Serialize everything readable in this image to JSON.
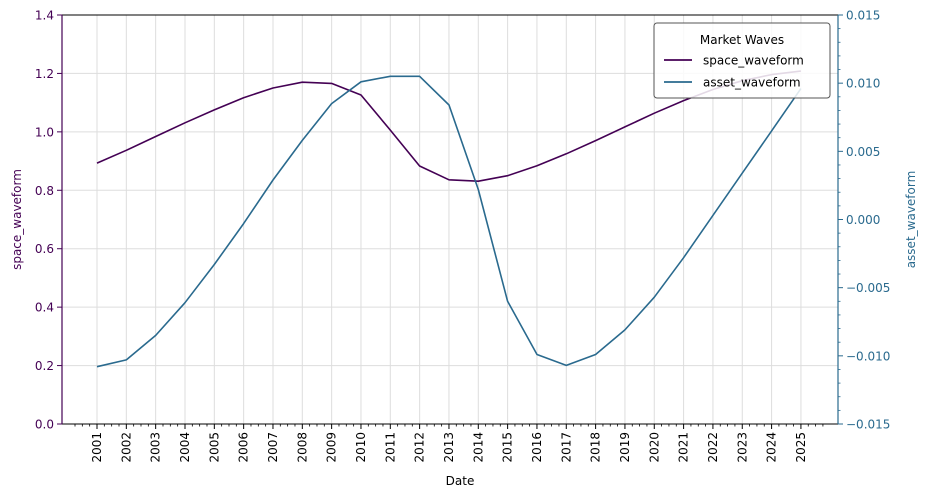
{
  "chart_data": {
    "type": "line",
    "xlabel": "Date",
    "ylabel_left": "space_waveform",
    "ylabel_right": "asset_waveform",
    "ylim_left": [
      0.0,
      1.4
    ],
    "ylim_right": [
      -0.015,
      0.015
    ],
    "x": [
      "2001",
      "2002",
      "2003",
      "2004",
      "2005",
      "2006",
      "2007",
      "2008",
      "2009",
      "2010",
      "2011",
      "2012",
      "2013",
      "2014",
      "2015",
      "2016",
      "2017",
      "2018",
      "2019",
      "2020",
      "2021",
      "2022",
      "2023",
      "2024",
      "2025"
    ],
    "left_ticks": [
      "0.0",
      "0.2",
      "0.4",
      "0.6",
      "0.8",
      "1.0",
      "1.2",
      "1.4"
    ],
    "right_ticks": [
      "−0.015",
      "−0.010",
      "−0.005",
      "0.000",
      "0.005",
      "0.010",
      "0.015"
    ],
    "grid": true,
    "legend": {
      "title": "Market Waves",
      "placement": "top-right"
    },
    "series": [
      {
        "name": "space_waveform",
        "axis": "left",
        "color": "#440154",
        "values": [
          0.893,
          0.937,
          0.984,
          1.031,
          1.075,
          1.117,
          1.15,
          1.17,
          1.166,
          1.126,
          1.006,
          0.883,
          0.836,
          0.831,
          0.85,
          0.884,
          0.925,
          0.97,
          1.017,
          1.064,
          1.107,
          1.145,
          1.175,
          1.196,
          1.208
        ]
      },
      {
        "name": "asset_waveform",
        "axis": "right",
        "color": "#2a6a8e",
        "values": [
          -0.0108,
          -0.0103,
          -0.0085,
          -0.0061,
          -0.0033,
          -0.0003,
          0.0029,
          0.0058,
          0.0085,
          0.0101,
          0.0105,
          0.0105,
          0.0084,
          0.0022,
          -0.006,
          -0.0099,
          -0.0107,
          -0.0099,
          -0.0081,
          -0.0057,
          -0.0028,
          0.0003,
          0.0034,
          0.0065,
          0.0096
        ]
      }
    ]
  }
}
